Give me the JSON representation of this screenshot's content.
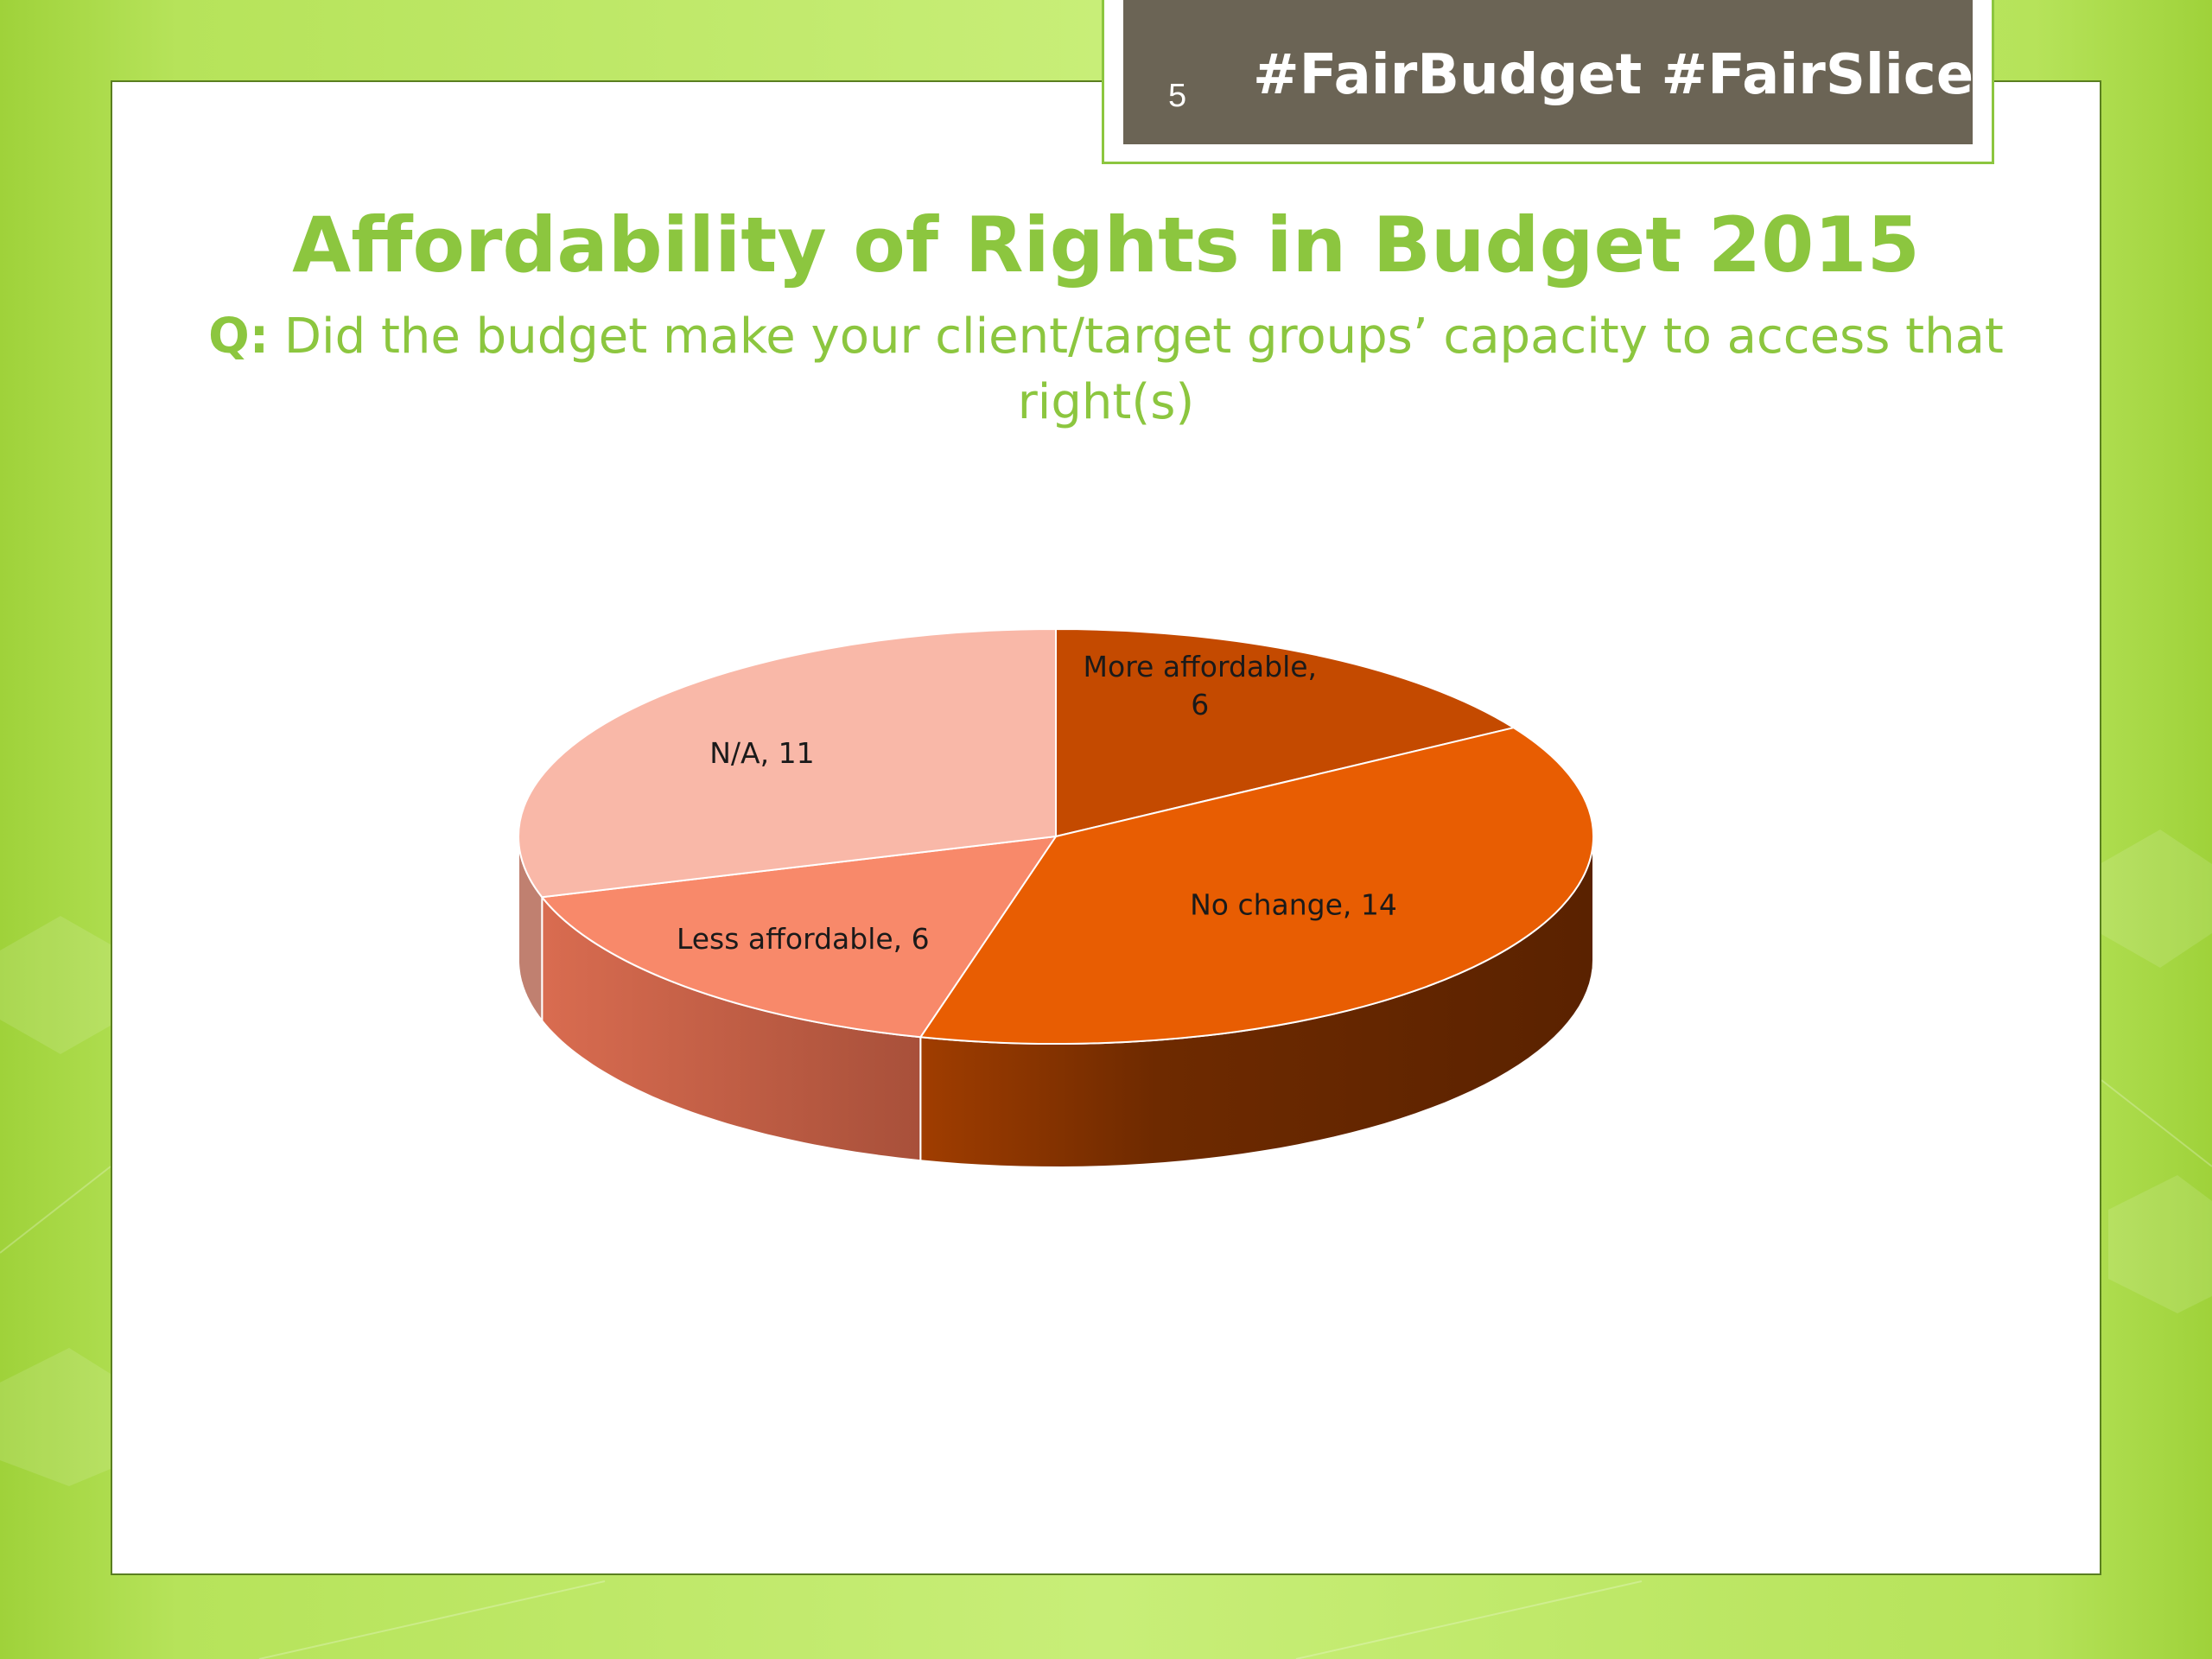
{
  "slide": {
    "number": "5",
    "hashtags": "#FairBudget #FairSlice",
    "title": "Affordability of Rights in Budget 2015",
    "question_prefix": "Q:",
    "question_text": "Did the budget make your client/target groups’ capacity to access that right(s)"
  },
  "colors": {
    "background_green": "#b6e35a",
    "title_green": "#8cc63f",
    "tag_box": "#6b6455",
    "more_affordable": "#c44a00",
    "no_change": "#e85d02",
    "less_affordable": "#f8896a",
    "na": "#f9b8a8"
  },
  "chart_data": {
    "type": "pie",
    "style": "3d",
    "title": "",
    "slices": [
      {
        "label": "More affordable",
        "value": 6
      },
      {
        "label": "No change",
        "value": 14
      },
      {
        "label": "Less affordable",
        "value": 6
      },
      {
        "label": "N/A",
        "value": 11
      }
    ],
    "data_labels": [
      "More affordable, 6",
      "No change, 14",
      "Less affordable, 6",
      "N/A, 11"
    ],
    "legend": "none"
  }
}
